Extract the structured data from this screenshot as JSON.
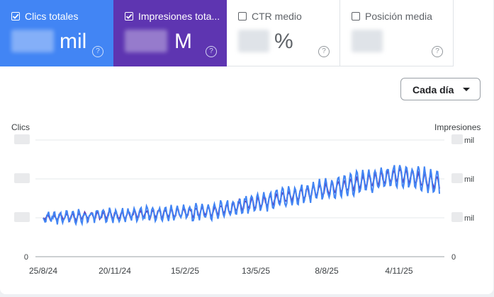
{
  "metrics": [
    {
      "label": "Clics totales",
      "unit": "mil",
      "checked": true,
      "color": "#4285f4"
    },
    {
      "label": "Impresiones tota...",
      "unit": "M",
      "checked": true,
      "color": "#5e35b1"
    },
    {
      "label": "CTR medio",
      "unit": "%",
      "checked": false
    },
    {
      "label": "Posición media",
      "unit": "",
      "checked": false
    }
  ],
  "help_glyph": "?",
  "dropdown": {
    "label": "Cada día"
  },
  "chart_data": {
    "type": "line",
    "y_left_label": "Clics",
    "y_right_label": "Impresiones",
    "x_ticks": [
      "25/8/24",
      "20/11/24",
      "15/2/25",
      "13/5/25",
      "8/8/25",
      "4/11/25"
    ],
    "y_left_ticks": [
      "",
      "",
      "",
      "0"
    ],
    "y_right_ticks": [
      "mil",
      "mil",
      "mil",
      "0"
    ],
    "series": [
      {
        "name": "Clics totales",
        "color": "#4285f4"
      },
      {
        "name": "Impresiones",
        "color": "#5e35b1"
      }
    ]
  }
}
